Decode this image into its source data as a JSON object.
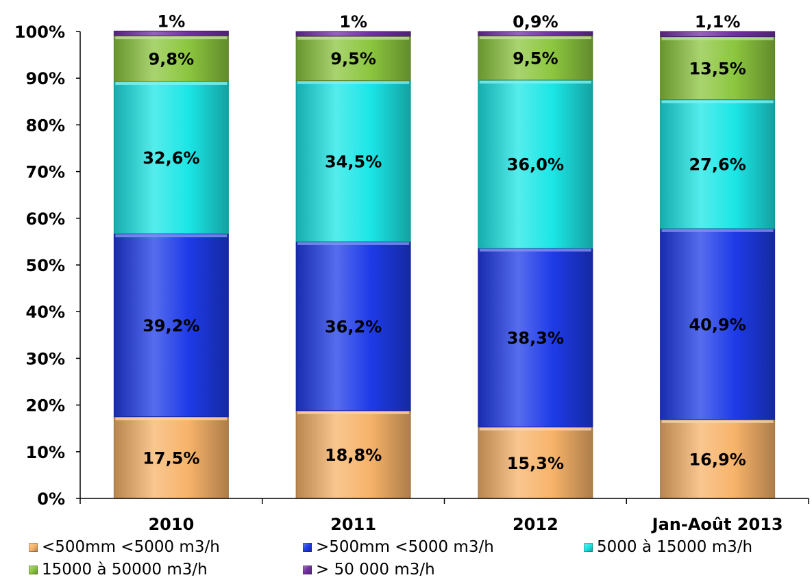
{
  "chart_data": {
    "type": "bar",
    "stacked": true,
    "percent": true,
    "categories": [
      "2010",
      "2011",
      "2012",
      "Jan-Août 2013"
    ],
    "y_ticks": [
      "0%",
      "10%",
      "20%",
      "30%",
      "40%",
      "50%",
      "60%",
      "70%",
      "80%",
      "90%",
      "100%"
    ],
    "ylim": [
      0,
      100
    ],
    "grid": false,
    "legend_position": "bottom",
    "series": [
      {
        "name": "<500mm <5000 m3/h",
        "color": "#F7B36A",
        "values": [
          17.5,
          18.8,
          15.3,
          16.9
        ],
        "labels": [
          "17,5%",
          "18,8%",
          "15,3%",
          "16,9%"
        ]
      },
      {
        "name": ">500mm <5000 m3/h",
        "color": "#1E3BE8",
        "values": [
          39.2,
          36.2,
          38.3,
          40.9
        ],
        "labels": [
          "39,2%",
          "36,2%",
          "38,3%",
          "40,9%"
        ]
      },
      {
        "name": "5000 à 15000 m3/h",
        "color": "#1CE6E6",
        "values": [
          32.6,
          34.5,
          36.0,
          27.6
        ],
        "labels": [
          "32,6%",
          "34,5%",
          "36,0%",
          "27,6%"
        ]
      },
      {
        "name": "15000 à 50000 m3/h",
        "color": "#8CC63F",
        "values": [
          9.8,
          9.5,
          9.5,
          13.5
        ],
        "labels": [
          "9,8%",
          "9,5%",
          "9,5%",
          "13,5%"
        ]
      },
      {
        "name": "> 50 000 m3/h",
        "color": "#7030A0",
        "values": [
          1.0,
          1.0,
          0.9,
          1.1
        ],
        "labels": [
          "1%",
          "1%",
          "0,9%",
          "1,1%"
        ]
      }
    ]
  }
}
